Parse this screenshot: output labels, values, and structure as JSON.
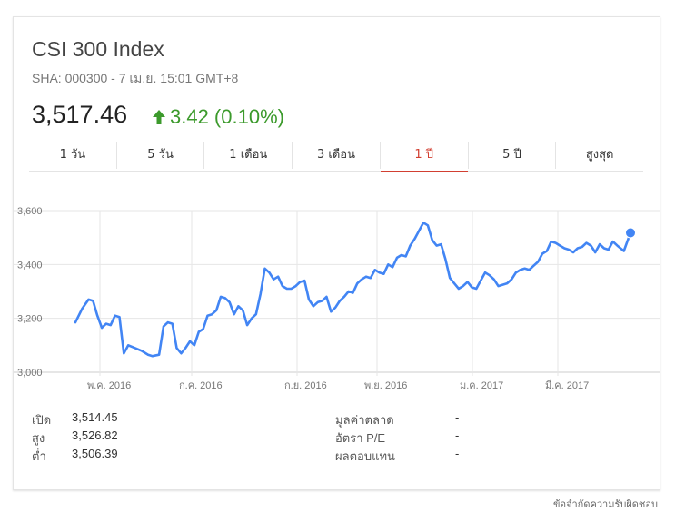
{
  "header": {
    "title": "CSI 300 Index",
    "subtitle": "SHA: 000300 - 7 เม.ย. 15:01 GMT+8",
    "price": "3,517.46",
    "change": "3.42 (0.10%)",
    "change_color": "#3c9a2c",
    "change_icon": "up-arrow-icon"
  },
  "tabs": [
    {
      "label": "1 วัน"
    },
    {
      "label": "5 วัน"
    },
    {
      "label": "1 เดือน"
    },
    {
      "label": "3 เดือน"
    },
    {
      "label": "1 ปี",
      "active": true
    },
    {
      "label": "5 ปี"
    },
    {
      "label": "สูงสุด"
    }
  ],
  "stats": {
    "open_label": "เปิด",
    "open_value": "3,514.45",
    "high_label": "สูง",
    "high_value": "3,526.82",
    "low_label": "ต่ำ",
    "low_value": "3,506.39",
    "mktcap_label": "มูลค่าตลาด",
    "mktcap_value": "-",
    "pe_label": "อัตรา P/E",
    "pe_value": "-",
    "div_label": "ผลตอบแทน",
    "div_value": "-"
  },
  "disclaimer": "ข้อจำกัดความรับผิดชอบ",
  "chart_data": {
    "type": "line",
    "line_color": "#4285f4",
    "grid": true,
    "ylim": [
      3000,
      3600
    ],
    "yticks": [
      3000,
      3200,
      3400,
      3600
    ],
    "ytick_labels": [
      "3,000",
      "3,200",
      "3,400",
      "3,600"
    ],
    "xlim": [
      0,
      360
    ],
    "xticks": [
      20,
      55,
      95,
      130,
      170,
      205
    ],
    "xtick_labels": [
      "พ.ค. 2016",
      "ก.ค. 2016",
      "ก.ย. 2016",
      "พ.ย. 2016",
      "ม.ค. 2017",
      "มี.ค. 2017"
    ],
    "x": [
      0,
      3,
      6,
      8,
      10,
      12,
      14,
      16,
      18,
      20,
      22,
      24,
      27,
      30,
      33,
      35,
      38,
      40,
      42,
      44,
      46,
      48,
      50,
      52,
      54,
      56,
      58,
      60,
      62,
      64,
      66,
      68,
      70,
      72,
      74,
      76,
      78,
      80,
      82,
      84,
      86,
      88,
      90,
      92,
      94,
      96,
      98,
      100,
      102,
      104,
      106,
      108,
      110,
      112,
      114,
      116,
      118,
      120,
      122,
      124,
      126,
      128,
      130,
      132,
      134,
      136,
      138,
      140,
      142,
      144,
      146,
      148,
      150,
      152,
      154,
      156,
      158,
      160,
      162,
      164,
      166,
      168,
      170,
      172,
      174,
      176,
      178,
      180,
      182,
      184,
      186,
      188,
      190,
      192,
      194,
      196,
      198,
      200,
      202,
      204,
      206,
      208,
      210,
      212,
      214,
      216,
      218,
      220,
      222,
      224,
      226,
      228,
      230,
      232,
      234,
      236,
      238,
      240,
      242,
      244,
      246,
      249,
      252
    ],
    "y": [
      3185,
      3235,
      3270,
      3265,
      3210,
      3165,
      3180,
      3175,
      3210,
      3205,
      3070,
      3100,
      3090,
      3080,
      3065,
      3060,
      3065,
      3170,
      3185,
      3180,
      3090,
      3070,
      3090,
      3115,
      3100,
      3150,
      3160,
      3210,
      3215,
      3230,
      3280,
      3275,
      3260,
      3215,
      3245,
      3230,
      3175,
      3200,
      3215,
      3290,
      3385,
      3370,
      3345,
      3355,
      3320,
      3310,
      3310,
      3320,
      3335,
      3340,
      3270,
      3245,
      3260,
      3265,
      3280,
      3225,
      3240,
      3265,
      3280,
      3300,
      3295,
      3330,
      3345,
      3355,
      3350,
      3380,
      3370,
      3365,
      3400,
      3390,
      3425,
      3435,
      3430,
      3470,
      3495,
      3525,
      3555,
      3545,
      3490,
      3470,
      3475,
      3420,
      3350,
      3330,
      3310,
      3320,
      3335,
      3315,
      3310,
      3340,
      3370,
      3360,
      3345,
      3320,
      3325,
      3330,
      3345,
      3370,
      3380,
      3385,
      3380,
      3395,
      3410,
      3440,
      3450,
      3485,
      3480,
      3470,
      3460,
      3455,
      3445,
      3460,
      3465,
      3480,
      3470,
      3445,
      3475,
      3460,
      3455,
      3485,
      3470,
      3450,
      3518
    ],
    "last_value": 3517.46
  }
}
